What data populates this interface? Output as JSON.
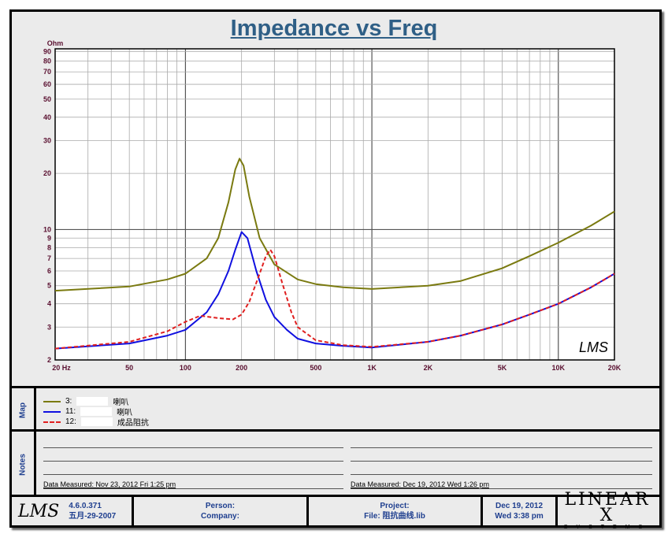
{
  "chart_data": {
    "type": "line",
    "title": "Impedance vs Freq",
    "ylabel": "Ohm",
    "xlabel": "",
    "xscale": "log",
    "yscale": "log",
    "xlim": [
      20,
      20000
    ],
    "ylim": [
      2,
      93
    ],
    "xticks": [
      {
        "v": 20,
        "l": "20  Hz"
      },
      {
        "v": 50,
        "l": "50"
      },
      {
        "v": 100,
        "l": "100"
      },
      {
        "v": 200,
        "l": "200"
      },
      {
        "v": 500,
        "l": "500"
      },
      {
        "v": 1000,
        "l": "1K"
      },
      {
        "v": 2000,
        "l": "2K"
      },
      {
        "v": 5000,
        "l": "5K"
      },
      {
        "v": 10000,
        "l": "10K"
      },
      {
        "v": 20000,
        "l": "20K"
      }
    ],
    "yticks": [
      2,
      3,
      4,
      5,
      6,
      7,
      8,
      9,
      10,
      20,
      30,
      40,
      50,
      60,
      70,
      80,
      90
    ],
    "grid": true,
    "watermark": "LMS",
    "series": [
      {
        "name": "3:",
        "label_suffix": "喇叭",
        "color": "#7a7a10",
        "dash": "solid",
        "x": [
          20,
          50,
          80,
          100,
          130,
          150,
          170,
          185,
          195,
          205,
          220,
          250,
          300,
          400,
          500,
          700,
          1000,
          2000,
          3000,
          5000,
          7000,
          10000,
          15000,
          20000
        ],
        "y": [
          4.7,
          4.95,
          5.4,
          5.8,
          7,
          9,
          14,
          21,
          24,
          22,
          15,
          9,
          6.5,
          5.4,
          5.1,
          4.9,
          4.8,
          5.0,
          5.3,
          6.2,
          7.2,
          8.5,
          10.5,
          12.5
        ]
      },
      {
        "name": "11:",
        "label_suffix": "喇叭",
        "color": "#1010e0",
        "dash": "solid",
        "x": [
          20,
          50,
          80,
          100,
          130,
          150,
          170,
          185,
          200,
          215,
          240,
          270,
          300,
          350,
          400,
          500,
          700,
          1000,
          2000,
          3000,
          5000,
          7000,
          10000,
          15000,
          20000
        ],
        "y": [
          2.3,
          2.45,
          2.7,
          2.9,
          3.6,
          4.5,
          6,
          7.8,
          9.7,
          9,
          6,
          4.2,
          3.4,
          2.9,
          2.6,
          2.45,
          2.38,
          2.33,
          2.5,
          2.7,
          3.1,
          3.5,
          4.0,
          4.9,
          5.8
        ]
      },
      {
        "name": "12:",
        "label_suffix": "成品阻抗",
        "color": "#e02020",
        "dash": "5,3",
        "x": [
          20,
          50,
          80,
          100,
          120,
          150,
          180,
          200,
          220,
          250,
          270,
          285,
          300,
          330,
          370,
          400,
          500,
          700,
          1000,
          2000,
          3000,
          5000,
          7000,
          10000,
          15000,
          20000
        ],
        "y": [
          2.3,
          2.5,
          2.85,
          3.2,
          3.45,
          3.35,
          3.3,
          3.5,
          4.1,
          5.8,
          7.2,
          7.8,
          7.2,
          5.2,
          3.6,
          3.0,
          2.55,
          2.4,
          2.35,
          2.5,
          2.7,
          3.1,
          3.5,
          4.0,
          4.9,
          5.8
        ]
      }
    ]
  },
  "map_label": "Map",
  "notes_label": "Notes",
  "notes": {
    "left_measured": "Data Measured: Nov 23, 2012  Fri  1:25 pm",
    "right_measured": "Data Measured: Dec 19, 2012  Wed  1:26 pm"
  },
  "footer": {
    "logo": "LMS",
    "version": "4.6.0.371",
    "build_date": "五月-29-2007",
    "person": "Person:",
    "company": "Company:",
    "project": "Project:",
    "file": "File: 阻抗曲线.lib",
    "date": "Dec 19, 2012",
    "time": "Wed  3:38 pm",
    "brand": "LINEAR X",
    "brand_sub": "SYSTEMS"
  }
}
